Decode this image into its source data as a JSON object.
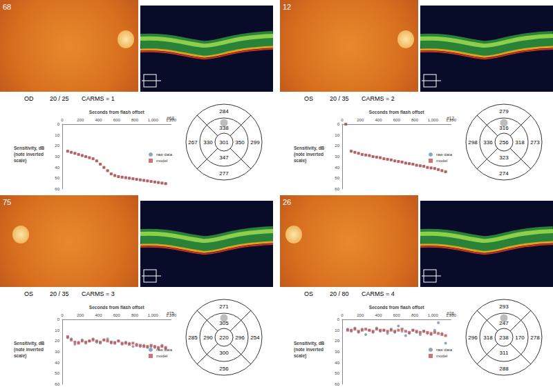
{
  "panels": [
    {
      "id": "68",
      "eye": "OD",
      "acuity": "20 / 25",
      "carms": "CARMS = 1",
      "thickness": {
        "center": 301,
        "inner": {
          "top": 338,
          "left": 330,
          "right": 350,
          "bottom": 347
        },
        "outer": {
          "top": 284,
          "left": 267,
          "right": 299,
          "bottom": 277
        }
      }
    },
    {
      "id": "12",
      "eye": "OS",
      "acuity": "20 / 35",
      "carms": "CARMS = 2",
      "thickness": {
        "center": 256,
        "inner": {
          "top": 316,
          "left": 336,
          "right": 318,
          "bottom": 323
        },
        "outer": {
          "top": 279,
          "left": 298,
          "right": 273,
          "bottom": 274
        }
      }
    },
    {
      "id": "75",
      "eye": "OS",
      "acuity": "20 / 35",
      "carms": "CARMS = 3",
      "thickness": {
        "center": 220,
        "inner": {
          "top": 305,
          "left": 290,
          "right": 296,
          "bottom": 300
        },
        "outer": {
          "top": 271,
          "left": 285,
          "right": 254,
          "bottom": 256
        }
      }
    },
    {
      "id": "26",
      "eye": "OS",
      "acuity": "20 / 80",
      "carms": "CARMS = 4",
      "thickness": {
        "center": 238,
        "inner": {
          "top": 247,
          "left": 318,
          "right": 170,
          "bottom": 311
        },
        "outer": {
          "top": 293,
          "left": 296,
          "right": 278,
          "bottom": 288
        }
      }
    }
  ],
  "chart_data": [
    {
      "type": "scatter",
      "title": "Seconds from flash offset",
      "annotation": "#68",
      "y_label": "Sensitivity, dB\n(note inverted\nscale)",
      "x": [
        60,
        100,
        140,
        180,
        220,
        260,
        300,
        340,
        380,
        420,
        460,
        500,
        540,
        580,
        620,
        660,
        700,
        740,
        780,
        820,
        860,
        900,
        940,
        980,
        1020,
        1060,
        1100,
        1140
      ],
      "series": [
        {
          "name": "raw data",
          "color": "#6f8fb7",
          "marker": "circle",
          "values": [
            25,
            26,
            27,
            28,
            29,
            30,
            31,
            32,
            34,
            37,
            40,
            43,
            46,
            47.5,
            48.5,
            49,
            49.5,
            50,
            50.5,
            51,
            51.5,
            52,
            52.5,
            53,
            53.5,
            54,
            54.5,
            55
          ]
        },
        {
          "name": "model",
          "color": "#c0504d",
          "marker": "square",
          "values": [
            25,
            26,
            27,
            28,
            29,
            30,
            31,
            32,
            34,
            37,
            40,
            43,
            46,
            47.5,
            48.5,
            49,
            49.5,
            50,
            50.5,
            51,
            51.5,
            52,
            52.5,
            53,
            53.5,
            54,
            54.5,
            55
          ]
        }
      ],
      "xlim": [
        0,
        1200
      ],
      "xticks": [
        0,
        200,
        400,
        600,
        800,
        1000,
        1200
      ],
      "ylim": [
        0,
        60
      ],
      "yticks": [
        0,
        10,
        20,
        30,
        40,
        50,
        60
      ],
      "grid": false,
      "legend": "right"
    },
    {
      "type": "scatter",
      "title": "Seconds from flash offset",
      "annotation": "#12",
      "y_label": "Sensitivity, dB\n(note inverted\nscale)",
      "x": [
        40,
        100,
        140,
        180,
        220,
        260,
        300,
        340,
        380,
        420,
        460,
        500,
        540,
        580,
        620,
        660,
        700,
        740,
        780,
        820,
        860,
        900,
        940,
        980,
        1020,
        1060,
        1100,
        1140
      ],
      "series": [
        {
          "name": "raw data",
          "color": "#6f8fb7",
          "marker": "circle",
          "values": [
            0,
            25,
            26,
            27,
            28,
            28.5,
            29,
            30,
            30.5,
            31,
            32,
            32.5,
            33,
            34,
            34.5,
            35,
            36,
            36.5,
            37,
            38,
            38.5,
            39,
            40,
            40.5,
            41,
            42,
            43,
            44
          ]
        },
        {
          "name": "model",
          "color": "#c0504d",
          "marker": "square",
          "values": [
            0,
            25,
            26,
            27,
            28,
            28.5,
            29,
            30,
            30.5,
            31,
            32,
            32.5,
            33,
            34,
            34.5,
            35,
            36,
            36.5,
            37,
            38,
            38.5,
            39,
            40,
            40.5,
            41,
            42,
            43,
            44
          ]
        }
      ],
      "xlim": [
        0,
        1200
      ],
      "xticks": [
        0,
        200,
        400,
        600,
        800,
        1000,
        1200
      ],
      "ylim": [
        0,
        60
      ],
      "yticks": [
        0,
        10,
        20,
        30,
        40,
        50,
        60
      ],
      "grid": false,
      "legend": "right"
    },
    {
      "type": "scatter",
      "title": "Seconds from flash offset",
      "annotation": "#75",
      "y_label": "Sensitivity, dB\n(note inverted\nscale)",
      "x": [
        60,
        100,
        140,
        180,
        220,
        260,
        300,
        340,
        380,
        420,
        460,
        500,
        540,
        580,
        620,
        660,
        700,
        740,
        780,
        820,
        860,
        900,
        940,
        980,
        1020,
        1060,
        1100,
        1140
      ],
      "series": [
        {
          "name": "raw data",
          "color": "#6f8fb7",
          "marker": "circle",
          "values": [
            17,
            18,
            23,
            21,
            19,
            22,
            20,
            18,
            21,
            22,
            19,
            18,
            22,
            21,
            20,
            23,
            21,
            22,
            25,
            23,
            25,
            24,
            26,
            25,
            26,
            27,
            24,
            27
          ]
        },
        {
          "name": "model",
          "color": "#c0504d",
          "marker": "square",
          "values": [
            16,
            19,
            21,
            22,
            20,
            21,
            20,
            19,
            20,
            21,
            19,
            20,
            21,
            22,
            20,
            22,
            22,
            23,
            22,
            24,
            24,
            25,
            25,
            24,
            25,
            26,
            25,
            26
          ]
        }
      ],
      "xlim": [
        0,
        1200
      ],
      "xticks": [
        0,
        200,
        400,
        600,
        800,
        1000,
        1200
      ],
      "ylim": [
        0,
        60
      ],
      "yticks": [
        0,
        10,
        20,
        30,
        40,
        50,
        60
      ],
      "grid": false,
      "legend": "right"
    },
    {
      "type": "scatter",
      "title": "Seconds from flash offset",
      "annotation": "#26",
      "y_label": "Sensitivity, dB\n(note inverted\nscale)",
      "x": [
        60,
        100,
        140,
        180,
        220,
        260,
        300,
        340,
        380,
        420,
        460,
        500,
        540,
        580,
        620,
        660,
        700,
        740,
        780,
        820,
        860,
        900,
        940,
        980,
        1020,
        1060,
        1100,
        1140
      ],
      "series": [
        {
          "name": "raw data",
          "color": "#6f8fb7",
          "marker": "circle",
          "values": [
            9,
            11,
            8,
            12,
            9,
            14,
            10,
            12,
            8,
            11,
            10,
            13,
            9,
            12,
            6,
            11,
            15,
            13,
            10,
            12,
            14,
            11,
            13,
            14,
            10,
            3,
            13,
            22
          ]
        },
        {
          "name": "model",
          "color": "#c0504d",
          "marker": "square",
          "values": [
            10,
            10,
            9,
            11,
            10,
            9,
            10,
            11,
            9,
            10,
            10,
            11,
            10,
            11,
            10,
            9,
            11,
            12,
            10,
            11,
            12,
            11,
            12,
            13,
            12,
            13,
            14,
            15
          ]
        }
      ],
      "xlim": [
        0,
        1200
      ],
      "xticks": [
        0,
        200,
        400,
        600,
        800,
        1000,
        1200
      ],
      "ylim": [
        0,
        60
      ],
      "yticks": [
        0,
        10,
        20,
        30,
        40,
        50,
        60
      ],
      "grid": false,
      "legend": "right"
    }
  ]
}
